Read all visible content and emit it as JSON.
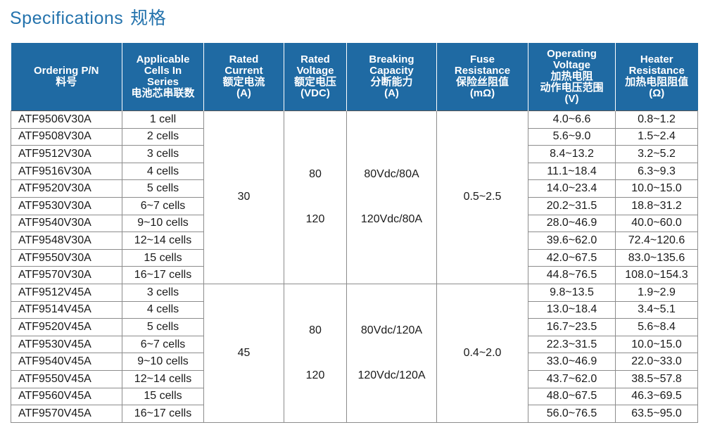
{
  "title": {
    "en": "Specifications",
    "cn": "规格"
  },
  "headers": [
    {
      "lines": [
        "Ordering P/N",
        "料号"
      ]
    },
    {
      "lines": [
        "Applicable",
        "Cells In",
        "Series",
        "电池芯串联数"
      ]
    },
    {
      "lines": [
        "Rated",
        "Current",
        "额定电流",
        "(A)"
      ]
    },
    {
      "lines": [
        "Rated",
        "Voltage",
        "额定电压",
        "(VDC)"
      ]
    },
    {
      "lines": [
        "Breaking",
        "Capacity",
        "分断能力",
        "(A)"
      ]
    },
    {
      "lines": [
        "Fuse",
        "Resistance",
        "保险丝阻值",
        "(mΩ)"
      ]
    },
    {
      "lines": [
        "Operating",
        "Voltage",
        "加热电阻",
        "动作电压范围",
        "(V)"
      ]
    },
    {
      "lines": [
        "Heater",
        "Resistance",
        "加热电阻阻值",
        "(Ω)"
      ]
    }
  ],
  "groups": [
    {
      "rated_current": "30",
      "rated_voltage": [
        "80",
        "120"
      ],
      "breaking_capacity": [
        "80Vdc/80A",
        "120Vdc/80A"
      ],
      "fuse_resistance": "0.5~2.5",
      "rows": [
        {
          "pn": "ATF9506V30A",
          "cells": "1 cell",
          "op_voltage": "4.0~6.6",
          "heater": "0.8~1.2"
        },
        {
          "pn": "ATF9508V30A",
          "cells": "2 cells",
          "op_voltage": "5.6~9.0",
          "heater": "1.5~2.4"
        },
        {
          "pn": "ATF9512V30A",
          "cells": "3 cells",
          "op_voltage": "8.4~13.2",
          "heater": "3.2~5.2"
        },
        {
          "pn": "ATF9516V30A",
          "cells": "4 cells",
          "op_voltage": "11.1~18.4",
          "heater": "6.3~9.3"
        },
        {
          "pn": "ATF9520V30A",
          "cells": "5 cells",
          "op_voltage": "14.0~23.4",
          "heater": "10.0~15.0"
        },
        {
          "pn": "ATF9530V30A",
          "cells": "6~7 cells",
          "op_voltage": "20.2~31.5",
          "heater": "18.8~31.2"
        },
        {
          "pn": "ATF9540V30A",
          "cells": "9~10 cells",
          "op_voltage": "28.0~46.9",
          "heater": "40.0~60.0"
        },
        {
          "pn": "ATF9548V30A",
          "cells": "12~14 cells",
          "op_voltage": "39.6~62.0",
          "heater": "72.4~120.6"
        },
        {
          "pn": "ATF9550V30A",
          "cells": "15 cells",
          "op_voltage": "42.0~67.5",
          "heater": "83.0~135.6"
        },
        {
          "pn": "ATF9570V30A",
          "cells": "16~17 cells",
          "op_voltage": "44.8~76.5",
          "heater": "108.0~154.3"
        }
      ]
    },
    {
      "rated_current": "45",
      "rated_voltage": [
        "80",
        "120"
      ],
      "breaking_capacity": [
        "80Vdc/120A",
        "120Vdc/120A"
      ],
      "fuse_resistance": "0.4~2.0",
      "rows": [
        {
          "pn": "ATF9512V45A",
          "cells": "3 cells",
          "op_voltage": "9.8~13.5",
          "heater": "1.9~2.9"
        },
        {
          "pn": "ATF9514V45A",
          "cells": "4 cells",
          "op_voltage": "13.0~18.4",
          "heater": "3.4~5.1"
        },
        {
          "pn": "ATF9520V45A",
          "cells": "5 cells",
          "op_voltage": "16.7~23.5",
          "heater": "5.6~8.4"
        },
        {
          "pn": "ATF9530V45A",
          "cells": "6~7 cells",
          "op_voltage": "22.3~31.5",
          "heater": "10.0~15.0"
        },
        {
          "pn": "ATF9540V45A",
          "cells": "9~10 cells",
          "op_voltage": "33.0~46.9",
          "heater": "22.0~33.0"
        },
        {
          "pn": "ATF9550V45A",
          "cells": "12~14 cells",
          "op_voltage": "43.7~62.0",
          "heater": "38.5~57.8"
        },
        {
          "pn": "ATF9560V45A",
          "cells": "15 cells",
          "op_voltage": "48.0~67.5",
          "heater": "46.3~69.5"
        },
        {
          "pn": "ATF9570V45A",
          "cells": "16~17 cells",
          "op_voltage": "56.0~76.5",
          "heater": "63.5~95.0"
        }
      ]
    }
  ]
}
